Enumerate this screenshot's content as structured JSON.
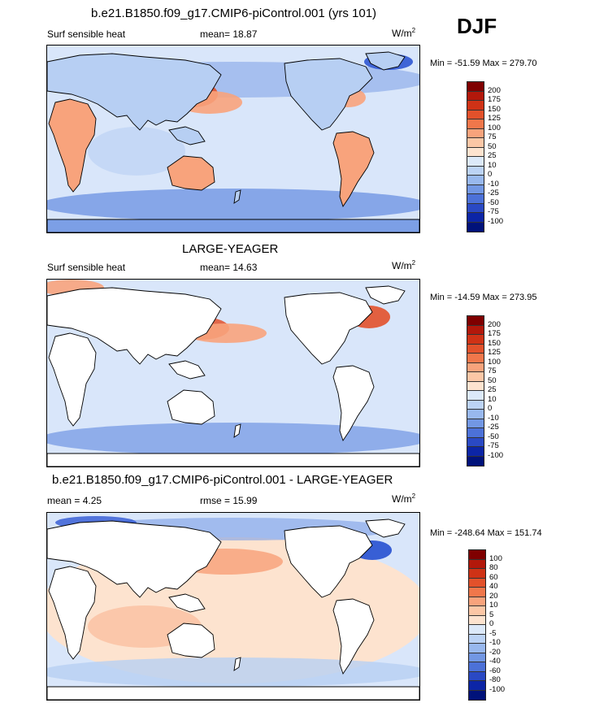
{
  "season": "DJF",
  "units_base": "W/m",
  "units_exp": "2",
  "panels": [
    {
      "title": "b.e21.B1850.f09_g17.CMIP6-piControl.001 (yrs 101)",
      "left_label": "Surf sensible heat",
      "stat": "mean=  18.87",
      "minmax": "Min = -51.59 Max = 279.70",
      "cbar_labels": [
        "200",
        "175",
        "150",
        "125",
        "100",
        "75",
        "50",
        "25",
        "10",
        "0",
        "-10",
        "-25",
        "-50",
        "-75",
        "-100"
      ],
      "cbar_colors": [
        "#7f0000",
        "#b2180b",
        "#cf3216",
        "#e2512b",
        "#f0774b",
        "#f8a37c",
        "#fcc7a6",
        "#fde3cf",
        "#dce9f9",
        "#bcd3f5",
        "#98b8ee",
        "#7297e4",
        "#4c71d8",
        "#2a49c4",
        "#0c25a6",
        "#00127a"
      ]
    },
    {
      "title": "LARGE-YEAGER",
      "left_label": "Surf sensible heat",
      "stat": "mean=  14.63",
      "minmax": "Min = -14.59 Max = 273.95",
      "cbar_labels": [
        "200",
        "175",
        "150",
        "125",
        "100",
        "75",
        "50",
        "25",
        "10",
        "0",
        "-10",
        "-25",
        "-50",
        "-75",
        "-100"
      ],
      "cbar_colors": [
        "#7f0000",
        "#b2180b",
        "#cf3216",
        "#e2512b",
        "#f0774b",
        "#f8a37c",
        "#fcc7a6",
        "#fde3cf",
        "#dce9f9",
        "#bcd3f5",
        "#98b8ee",
        "#7297e4",
        "#4c71d8",
        "#2a49c4",
        "#0c25a6",
        "#00127a"
      ]
    },
    {
      "title": "b.e21.B1850.f09_g17.CMIP6-piControl.001 - LARGE-YEAGER",
      "left_label": "mean =   4.25",
      "stat": "rmse =  15.99",
      "minmax": "Min = -248.64 Max = 151.74",
      "cbar_labels": [
        "100",
        "80",
        "60",
        "40",
        "20",
        "10",
        "5",
        "0",
        "-5",
        "-10",
        "-20",
        "-40",
        "-60",
        "-80",
        "-100"
      ],
      "cbar_colors": [
        "#7f0000",
        "#b2180b",
        "#cf3216",
        "#e2512b",
        "#f0774b",
        "#f8a37c",
        "#fcc7a6",
        "#fde3cf",
        "#dce9f9",
        "#bcd3f5",
        "#98b8ee",
        "#7297e4",
        "#4c71d8",
        "#2a49c4",
        "#0c25a6",
        "#00127a"
      ]
    }
  ],
  "map_colors": {
    "ocean_light": "#d9e6fa",
    "ocean_mid": "#b7cff3",
    "ocean_blue": "#7c9fe6",
    "ocean_dark": "#2f57d3",
    "warm_light": "#fde3cf",
    "warm_mid": "#f8a37c",
    "warm_strong": "#e2512b",
    "land_white": "#ffffff"
  }
}
